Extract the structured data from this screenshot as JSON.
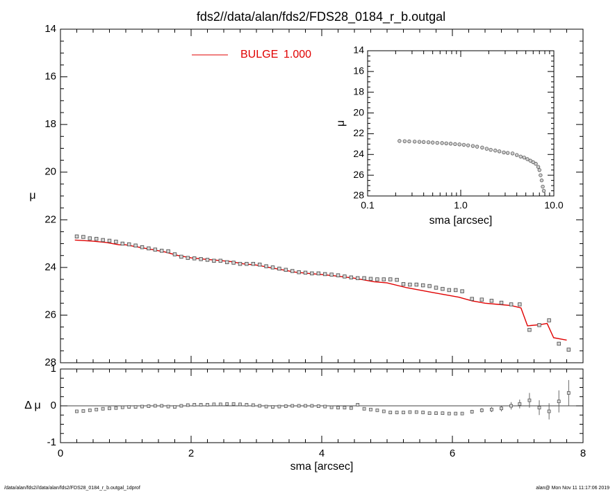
{
  "title": "fds2//data/alan/fds2/FDS28_0184_r_b.outgal",
  "footer_left": "/data/alan/fds2//data/alan/fds2/FDS28_0184_r_b.outgal_1dprof",
  "footer_right": "alan@  Mon Nov 11 11:17:06 2019",
  "colors": {
    "model": "#e00000",
    "data": "#555555",
    "axes": "#000000"
  },
  "chart_data": [
    {
      "id": "main",
      "type": "scatter",
      "xlabel": "sma [arcsec]",
      "ylabel": "μ",
      "xlim": [
        0,
        8
      ],
      "ylim": [
        28,
        14
      ],
      "y_inverted": true,
      "xticks": [
        "0",
        "2",
        "4",
        "6",
        "8"
      ],
      "yticks": [
        "14",
        "16",
        "18",
        "20",
        "22",
        "24",
        "26",
        "28"
      ],
      "legend": {
        "label": "BULGE",
        "value": "1.000",
        "placement": "top-center"
      },
      "series": [
        {
          "name": "BULGE",
          "kind": "line",
          "x": [
            0.22,
            0.5,
            0.7,
            0.9,
            1.0,
            1.2,
            1.4,
            1.6,
            1.8,
            2.0,
            2.2,
            2.4,
            2.6,
            2.8,
            3.0,
            3.2,
            3.4,
            3.6,
            3.8,
            4.0,
            4.2,
            4.5,
            4.8,
            5.0,
            5.3,
            5.5,
            5.7,
            5.9,
            6.1,
            6.3,
            6.5,
            6.7,
            6.9,
            7.05,
            7.15,
            7.35,
            7.45,
            7.55,
            7.75
          ],
          "y": [
            22.85,
            22.9,
            22.95,
            23.05,
            23.05,
            23.15,
            23.25,
            23.35,
            23.5,
            23.6,
            23.65,
            23.7,
            23.75,
            23.85,
            23.9,
            24.0,
            24.1,
            24.2,
            24.25,
            24.3,
            24.35,
            24.45,
            24.6,
            24.65,
            24.85,
            24.95,
            25.05,
            25.15,
            25.25,
            25.4,
            25.5,
            25.55,
            25.6,
            25.7,
            26.45,
            26.4,
            26.35,
            26.95,
            27.05
          ]
        },
        {
          "name": "data",
          "kind": "points",
          "x": [
            0.25,
            0.35,
            0.45,
            0.55,
            0.65,
            0.75,
            0.85,
            0.95,
            1.05,
            1.15,
            1.25,
            1.35,
            1.45,
            1.55,
            1.65,
            1.75,
            1.85,
            1.95,
            2.05,
            2.15,
            2.25,
            2.35,
            2.45,
            2.55,
            2.65,
            2.75,
            2.85,
            2.95,
            3.05,
            3.15,
            3.25,
            3.35,
            3.45,
            3.55,
            3.65,
            3.75,
            3.85,
            3.95,
            4.05,
            4.15,
            4.25,
            4.35,
            4.45,
            4.55,
            4.65,
            4.75,
            4.85,
            4.95,
            5.05,
            5.15,
            5.25,
            5.35,
            5.45,
            5.55,
            5.65,
            5.75,
            5.85,
            5.95,
            6.05,
            6.15,
            6.3,
            6.45,
            6.6,
            6.75,
            6.9,
            7.03,
            7.18,
            7.33,
            7.48,
            7.63,
            7.78
          ],
          "y": [
            22.7,
            22.72,
            22.78,
            22.8,
            22.85,
            22.88,
            22.92,
            23.0,
            23.03,
            23.08,
            23.15,
            23.2,
            23.25,
            23.3,
            23.32,
            23.45,
            23.55,
            23.6,
            23.62,
            23.65,
            23.68,
            23.72,
            23.72,
            23.78,
            23.8,
            23.85,
            23.85,
            23.85,
            23.88,
            23.95,
            24.0,
            24.05,
            24.1,
            24.15,
            24.2,
            24.22,
            24.25,
            24.25,
            24.28,
            24.3,
            24.33,
            24.38,
            24.42,
            24.45,
            24.45,
            24.48,
            24.5,
            24.5,
            24.5,
            24.52,
            24.7,
            24.72,
            24.72,
            24.75,
            24.78,
            24.85,
            24.9,
            24.95,
            24.95,
            25.0,
            25.32,
            25.35,
            25.4,
            25.48,
            25.55,
            25.55,
            26.62,
            26.42,
            26.22,
            27.2,
            27.45
          ]
        }
      ]
    },
    {
      "id": "residual",
      "type": "scatter",
      "xlabel": "sma [arcsec]",
      "ylabel": "Δ μ",
      "xlim": [
        0,
        8
      ],
      "ylim": [
        -1,
        1
      ],
      "xticks": [
        "0",
        "2",
        "4",
        "6",
        "8"
      ],
      "yticks": [
        "1",
        "0",
        "-1"
      ],
      "zero_line": true,
      "series": [
        {
          "name": "residual",
          "kind": "points",
          "x": [
            0.25,
            0.35,
            0.45,
            0.55,
            0.65,
            0.75,
            0.85,
            0.95,
            1.05,
            1.15,
            1.25,
            1.35,
            1.45,
            1.55,
            1.65,
            1.75,
            1.85,
            1.95,
            2.05,
            2.15,
            2.25,
            2.35,
            2.45,
            2.55,
            2.65,
            2.75,
            2.85,
            2.95,
            3.05,
            3.15,
            3.25,
            3.35,
            3.45,
            3.55,
            3.65,
            3.75,
            3.85,
            3.95,
            4.05,
            4.15,
            4.25,
            4.35,
            4.45,
            4.55,
            4.65,
            4.75,
            4.85,
            4.95,
            5.05,
            5.15,
            5.25,
            5.35,
            5.45,
            5.55,
            5.65,
            5.75,
            5.85,
            5.95,
            6.05,
            6.15,
            6.3,
            6.45,
            6.6,
            6.75,
            6.9,
            7.03,
            7.18,
            7.33,
            7.48,
            7.63,
            7.78
          ],
          "y": [
            -0.15,
            -0.14,
            -0.12,
            -0.1,
            -0.08,
            -0.07,
            -0.06,
            -0.04,
            -0.03,
            -0.03,
            -0.02,
            -0.01,
            0.0,
            0.0,
            -0.02,
            -0.03,
            0.0,
            0.02,
            0.03,
            0.03,
            0.03,
            0.04,
            0.04,
            0.05,
            0.05,
            0.04,
            0.03,
            0.02,
            0.0,
            -0.02,
            -0.03,
            -0.02,
            -0.01,
            0.0,
            0.0,
            0.0,
            0.0,
            -0.01,
            -0.02,
            -0.04,
            -0.05,
            -0.05,
            -0.06,
            0.03,
            -0.08,
            -0.1,
            -0.12,
            -0.15,
            -0.18,
            -0.18,
            -0.18,
            -0.17,
            -0.17,
            -0.18,
            -0.2,
            -0.2,
            -0.2,
            -0.21,
            -0.21,
            -0.21,
            -0.16,
            -0.12,
            -0.1,
            -0.07,
            0.0,
            0.05,
            0.15,
            -0.05,
            -0.15,
            0.12,
            0.35
          ],
          "yerr": [
            0.01,
            0.01,
            0.01,
            0.01,
            0.01,
            0.01,
            0.01,
            0.01,
            0.01,
            0.01,
            0.01,
            0.01,
            0.01,
            0.01,
            0.01,
            0.01,
            0.01,
            0.01,
            0.01,
            0.01,
            0.01,
            0.01,
            0.01,
            0.01,
            0.01,
            0.01,
            0.01,
            0.01,
            0.01,
            0.01,
            0.01,
            0.01,
            0.01,
            0.01,
            0.01,
            0.01,
            0.01,
            0.01,
            0.01,
            0.01,
            0.01,
            0.01,
            0.01,
            0.01,
            0.01,
            0.01,
            0.01,
            0.01,
            0.01,
            0.01,
            0.01,
            0.01,
            0.01,
            0.01,
            0.01,
            0.01,
            0.01,
            0.01,
            0.01,
            0.01,
            0.05,
            0.06,
            0.07,
            0.08,
            0.1,
            0.12,
            0.2,
            0.2,
            0.22,
            0.3,
            0.35
          ]
        }
      ]
    },
    {
      "id": "inset",
      "type": "scatter",
      "xlabel": "sma [arcsec]",
      "ylabel": "μ",
      "xscale": "log",
      "xlim": [
        0.1,
        10.0
      ],
      "ylim": [
        28,
        14
      ],
      "y_inverted": true,
      "xticks": [
        "0.1",
        "1.0",
        "10.0"
      ],
      "yticks": [
        "14",
        "16",
        "18",
        "20",
        "22",
        "24",
        "26",
        "28"
      ],
      "series": [
        {
          "name": "data",
          "kind": "points",
          "x": [
            0.22,
            0.25,
            0.28,
            0.32,
            0.36,
            0.4,
            0.45,
            0.5,
            0.56,
            0.63,
            0.7,
            0.78,
            0.87,
            0.97,
            1.08,
            1.2,
            1.35,
            1.5,
            1.7,
            1.9,
            2.1,
            2.35,
            2.6,
            2.9,
            3.2,
            3.6,
            4.0,
            4.4,
            4.8,
            5.2,
            5.6,
            6.0,
            6.4,
            6.8,
            7.0,
            7.2,
            7.4,
            7.6,
            7.8
          ],
          "y": [
            22.7,
            22.72,
            22.74,
            22.76,
            22.78,
            22.8,
            22.82,
            22.85,
            22.88,
            22.9,
            22.93,
            22.96,
            23.0,
            23.03,
            23.07,
            23.12,
            23.18,
            23.25,
            23.33,
            23.45,
            23.55,
            23.62,
            23.7,
            23.8,
            23.85,
            23.9,
            24.05,
            24.2,
            24.3,
            24.45,
            24.6,
            24.75,
            24.9,
            25.2,
            25.5,
            26.0,
            26.5,
            27.1,
            27.5
          ]
        }
      ]
    }
  ]
}
